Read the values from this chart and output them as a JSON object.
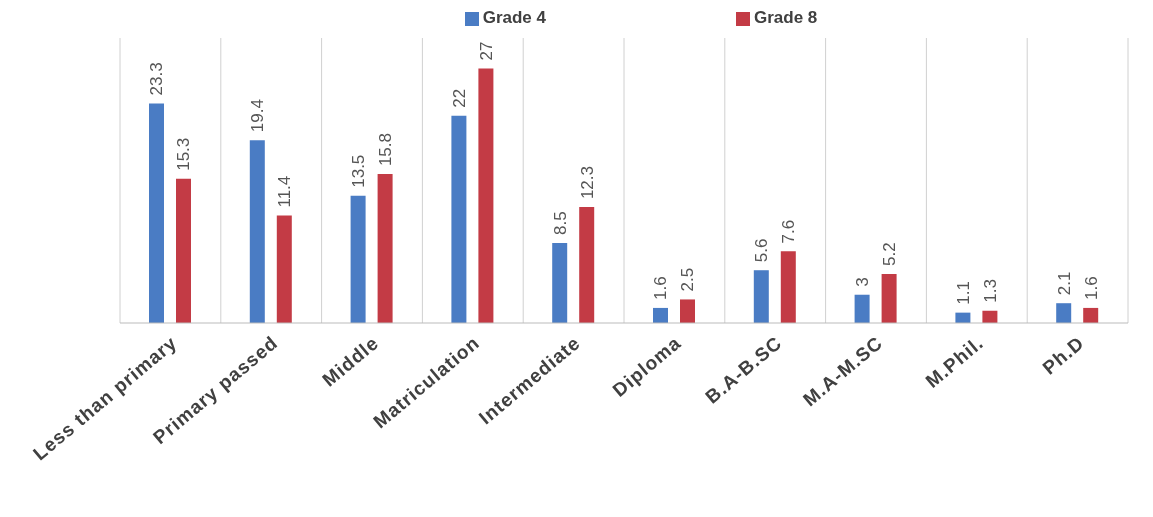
{
  "chart_data": {
    "type": "bar",
    "categories": [
      "Less than primary",
      "Primary passed",
      "Middle",
      "Matriculation",
      "Intermediate",
      "Diploma",
      "B.A-B.SC",
      "M.A-M.SC",
      "M.Phil.",
      "Ph.D"
    ],
    "series": [
      {
        "name": "Grade 4",
        "color": "#4a7cc4",
        "values": [
          23.3,
          19.4,
          13.5,
          22,
          8.5,
          1.6,
          5.6,
          3,
          1.1,
          2.1
        ]
      },
      {
        "name": "Grade 8",
        "color": "#c33b45",
        "values": [
          15.3,
          11.4,
          15.8,
          27,
          12.3,
          2.5,
          7.6,
          5.2,
          1.3,
          1.6
        ]
      }
    ],
    "data_labels": true,
    "grid": "x",
    "legend": "top",
    "tick_labels": "x"
  }
}
